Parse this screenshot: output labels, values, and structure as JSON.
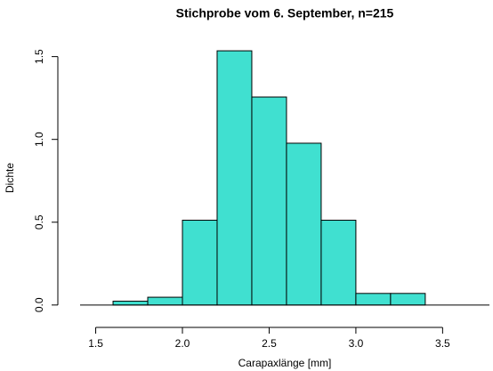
{
  "chart_data": {
    "type": "histogram",
    "title": "Stichprobe vom 6. September, n=215",
    "x_label": "Carapaxlänge [mm]",
    "y_label": "Dichte",
    "bins": [
      1.6,
      1.8,
      2.0,
      2.2,
      2.4,
      2.6,
      2.8,
      3.0,
      3.2,
      3.4
    ],
    "values": [
      0.023,
      0.047,
      0.512,
      1.535,
      1.256,
      0.977,
      0.512,
      0.07,
      0.07
    ],
    "color": "#40e0d0",
    "xlim": [
      1.41,
      3.77
    ],
    "ylim": [
      -0.06,
      1.6
    ],
    "xticks": [
      1.5,
      {
        "value": 2,
        "label": "2.0"
      },
      2.5,
      {
        "value": 3,
        "label": "3.0"
      },
      3.5
    ],
    "yticks": [
      {
        "value": 0,
        "label": "0.0"
      },
      0.5,
      {
        "value": 1,
        "label": "1.0"
      },
      1.5
    ]
  }
}
